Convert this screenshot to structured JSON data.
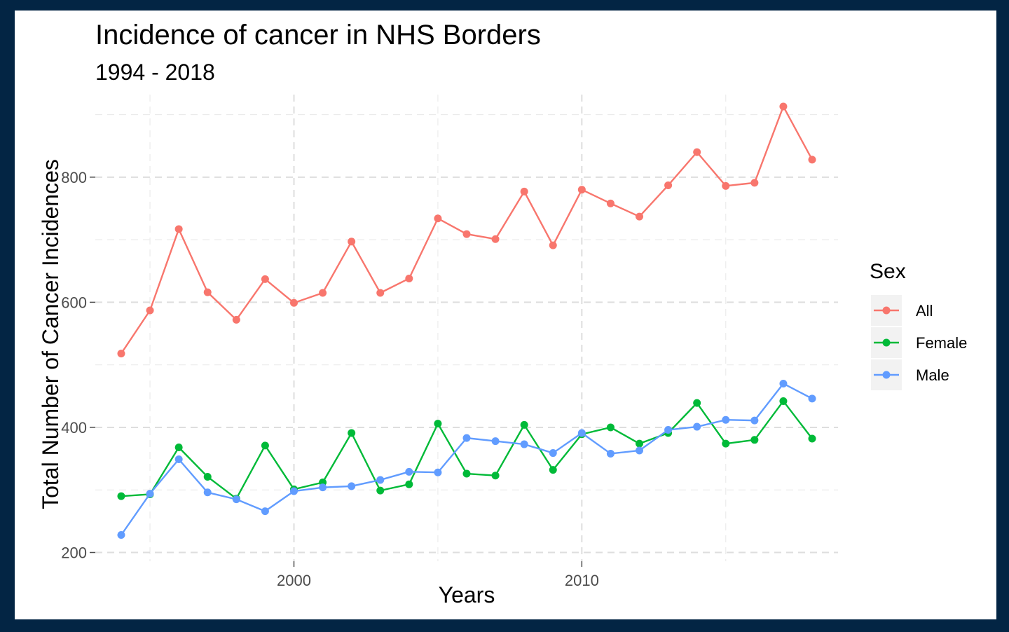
{
  "chart_data": {
    "type": "line",
    "title": "Incidence of cancer in NHS Borders",
    "subtitle": "1994 - 2018",
    "xlabel": "Years",
    "ylabel": "Total Number of Cancer Incidences",
    "xlim": [
      1993.1,
      2018.9
    ],
    "ylim": [
      186,
      932
    ],
    "x_ticks": [
      2000,
      2010
    ],
    "y_ticks": [
      200,
      400,
      600,
      800
    ],
    "grid": true,
    "legend": {
      "title": "Sex",
      "position": "right"
    },
    "x": [
      1994,
      1995,
      1996,
      1997,
      1998,
      1999,
      2000,
      2001,
      2002,
      2003,
      2004,
      2005,
      2006,
      2007,
      2008,
      2009,
      2010,
      2011,
      2012,
      2013,
      2014,
      2015,
      2016,
      2017,
      2018
    ],
    "series": [
      {
        "name": "All",
        "color": "#F8766D",
        "values": [
          518,
          587,
          717,
          616,
          572,
          637,
          599,
          615,
          697,
          615,
          638,
          734,
          709,
          701,
          777,
          691,
          780,
          758,
          737,
          787,
          840,
          786,
          791,
          913,
          828
        ]
      },
      {
        "name": "Female",
        "color": "#00BA38",
        "values": [
          290,
          293,
          368,
          321,
          286,
          371,
          301,
          312,
          391,
          299,
          309,
          406,
          326,
          323,
          404,
          332,
          389,
          400,
          374,
          391,
          439,
          374,
          380,
          442,
          382
        ]
      },
      {
        "name": "Male",
        "color": "#619CFF",
        "values": [
          228,
          294,
          349,
          296,
          285,
          266,
          298,
          304,
          306,
          316,
          329,
          328,
          383,
          378,
          373,
          359,
          391,
          358,
          363,
          396,
          401,
          412,
          411,
          470,
          446
        ]
      }
    ]
  }
}
